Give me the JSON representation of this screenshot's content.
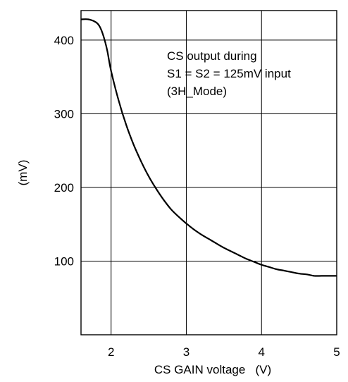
{
  "chart_data": {
    "type": "line",
    "title": "",
    "xlabel": "CS GAIN voltage   (V)",
    "ylabel": "(mV)",
    "xlim": [
      1.6,
      5.0
    ],
    "ylim": [
      0,
      440
    ],
    "xticks": [
      2,
      3,
      4,
      5
    ],
    "yticks": [
      100,
      200,
      300,
      400
    ],
    "grid": true,
    "annotation": [
      "CS output during",
      "S1 = S2 = 125mV input",
      "(3H_Mode)"
    ],
    "series": [
      {
        "x": [
          1.6,
          1.7,
          1.8,
          1.85,
          1.9,
          1.95,
          2.0,
          2.1,
          2.2,
          2.3,
          2.4,
          2.5,
          2.6,
          2.7,
          2.8,
          2.9,
          3.0,
          3.1,
          3.2,
          3.3,
          3.4,
          3.5,
          3.6,
          3.7,
          3.8,
          3.9,
          4.0,
          4.1,
          4.2,
          4.3,
          4.4,
          4.5,
          4.6,
          4.7,
          4.8,
          4.9,
          5.0
        ],
        "values": [
          428,
          428,
          424,
          418,
          405,
          385,
          358,
          318,
          285,
          258,
          235,
          215,
          198,
          183,
          170,
          160,
          151,
          143,
          136,
          130,
          124,
          118,
          113,
          108,
          103,
          99,
          95,
          92,
          89,
          87,
          85,
          83,
          82,
          80,
          80,
          80,
          80
        ]
      }
    ]
  }
}
